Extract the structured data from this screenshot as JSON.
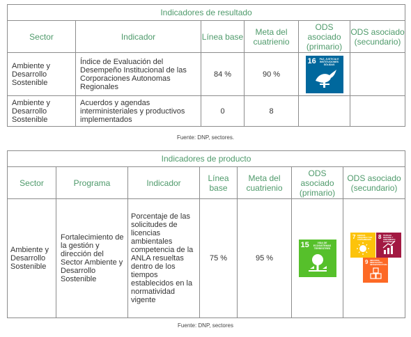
{
  "resultado": {
    "title": "Indicadores de resultado",
    "headers": {
      "sector": "Sector",
      "indicador": "Indicador",
      "linea_base": "Línea base",
      "meta": "Meta del cuatrienio",
      "ods_primario": "ODS asociado (primario)",
      "ods_secundario": "ODS asociado (secundario)"
    },
    "rows": [
      {
        "sector": "Ambiente y Desarrollo Sostenible",
        "indicador": "Índice de Evaluación del Desempeño Institucional de las Corporaciones Autonomas Regionales",
        "linea_base": "84 %",
        "meta": "90 %",
        "ods_primario": {
          "number": "16",
          "text": "Paz, justicia e instituciones sólidas",
          "color": "#00689d",
          "icon": "dove-gavel-icon"
        }
      },
      {
        "sector": "Ambiente y Desarrollo Sostenible",
        "indicador": "Acuerdos y agendas interministeriales y productivos implementados",
        "linea_base": "0",
        "meta": "8"
      }
    ],
    "source": "Fuente: DNP, sectores."
  },
  "producto": {
    "title": "Indicadores de producto",
    "headers": {
      "sector": "Sector",
      "programa": "Programa",
      "indicador": "Indicador",
      "linea_base": "Línea base",
      "meta": "Meta del cuatrienio",
      "ods_primario": "ODS asociado (primario)",
      "ods_secundario": "ODS asociado (secundario)"
    },
    "rows": [
      {
        "sector": "Ambiente y Desarrollo Sostenible",
        "programa": "Fortalecimiento de la gestión y dirección del Sector Ambiente y Desarrollo Sostenible",
        "indicador": "Porcentaje de las solicitudes de licencias ambientales competencia de la ANLA resueltas dentro de los tiempos establecidos en la normatividad vigente",
        "linea_base": "75 %",
        "meta": "95 %",
        "ods_primario": {
          "number": "15",
          "text": "Vida de ecosistemas terrestres",
          "color": "#56c02b",
          "icon": "tree-icon"
        },
        "ods_secundario": [
          {
            "number": "7",
            "text": "Energía asequible y no contaminante",
            "color": "#fcc30b",
            "icon": "sun-icon"
          },
          {
            "number": "8",
            "text": "Trabajo decente y crecimiento económico",
            "color": "#a21942",
            "icon": "growth-chart-icon"
          },
          {
            "number": "9",
            "text": "Industria, innovación e infraestructura",
            "color": "#fd6925",
            "icon": "cubes-icon"
          }
        ]
      }
    ],
    "source": "Fuente: DNP, sectores"
  }
}
